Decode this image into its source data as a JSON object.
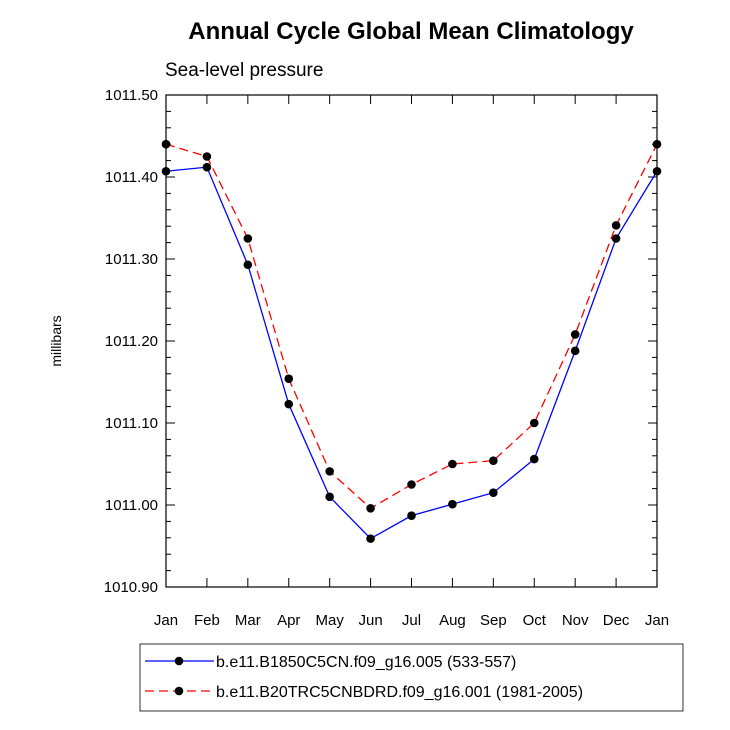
{
  "chart_data": {
    "type": "line",
    "title": "Annual Cycle Global Mean Climatology",
    "subtitle": "Sea-level pressure",
    "xlabel": "",
    "ylabel": "millibars",
    "categories": [
      "Jan",
      "Feb",
      "Mar",
      "Apr",
      "May",
      "Jun",
      "Jul",
      "Aug",
      "Sep",
      "Oct",
      "Nov",
      "Dec",
      "Jan"
    ],
    "ylim": [
      1010.9,
      1011.5
    ],
    "yticks": [
      1010.9,
      1011.0,
      1011.1,
      1011.2,
      1011.3,
      1011.4,
      1011.5
    ],
    "ytick_labels": [
      "1010.90",
      "1011.00",
      "1011.10",
      "1011.20",
      "1011.30",
      "1011.40",
      "1011.50"
    ],
    "grid": false,
    "legend_position": "bottom",
    "series": [
      {
        "name": "b.e11.B1850C5CN.f09_g16.005 (533-557)",
        "color": "#0000ff",
        "dash": "solid",
        "marker": "circle",
        "values": [
          1011.407,
          1011.412,
          1011.293,
          1011.123,
          1011.01,
          1010.959,
          1010.987,
          1011.001,
          1011.015,
          1011.056,
          1011.188,
          1011.325,
          1011.407
        ]
      },
      {
        "name": "b.e11.B20TRC5CNBDRD.f09_g16.001 (1981-2005)",
        "color": "#ff0000",
        "dash": "dashed",
        "marker": "circle",
        "values": [
          1011.44,
          1011.425,
          1011.325,
          1011.154,
          1011.041,
          1010.996,
          1011.025,
          1011.05,
          1011.054,
          1011.1,
          1011.208,
          1011.341,
          1011.44
        ]
      }
    ]
  }
}
